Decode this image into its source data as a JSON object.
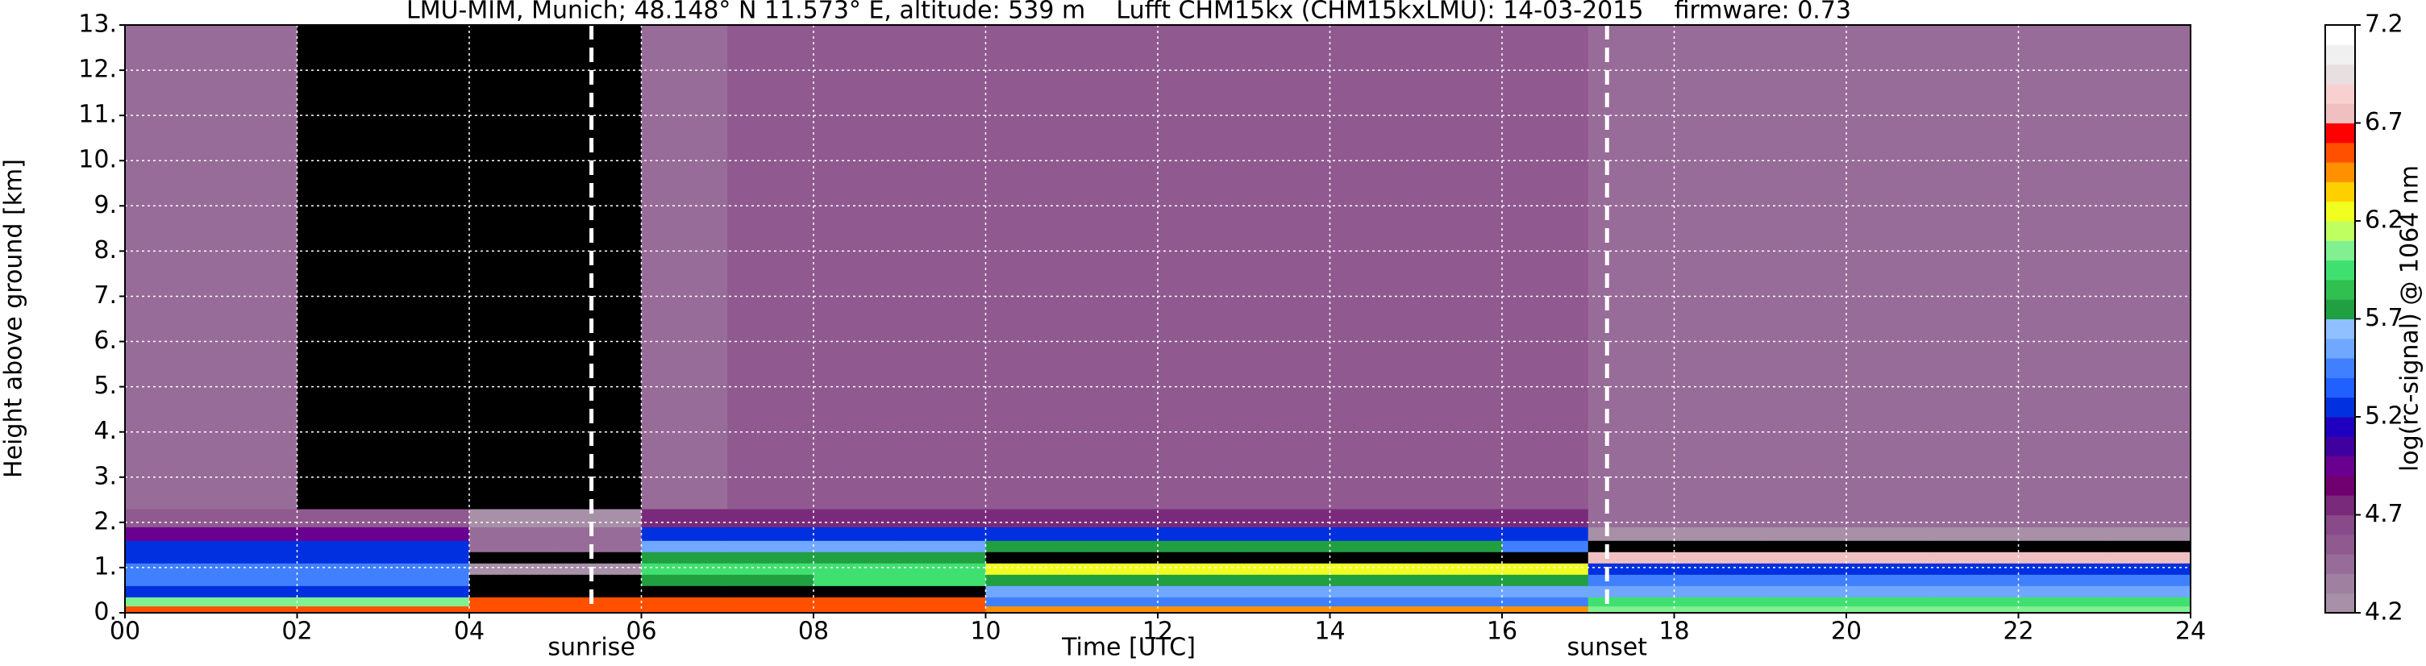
{
  "chart_data": {
    "type": "heatmap",
    "title": "LMU-MIM, Munich; 48.148° N 11.573° E, altitude: 539 m    Lufft CHM15kx (CHM15kxLMU): 14-03-2015    firmware: 0.73",
    "xlabel": "Time [UTC]",
    "ylabel": "Height above ground [km]",
    "colorbar_label": "log(rc-signal) @ 1064 nm",
    "x_edges": [
      0,
      1,
      2,
      3,
      4,
      5,
      6,
      7,
      8,
      9,
      10,
      11,
      12,
      13,
      14,
      15,
      16,
      17,
      18,
      19,
      20,
      21,
      22,
      23,
      24
    ],
    "y_edges": [
      0,
      0.15,
      0.35,
      0.6,
      0.85,
      1.1,
      1.35,
      1.6,
      1.9,
      2.3,
      13
    ],
    "z": [
      [
        6.5,
        6.5,
        6.5,
        6.5,
        6.5,
        6.5,
        6.5,
        6.5,
        6.5,
        6.5,
        6.4,
        6.4,
        6.4,
        6.4,
        6.4,
        6.4,
        6.4,
        6.0,
        6.0,
        6.0,
        6.0,
        6.0,
        6.0,
        6.0
      ],
      [
        6.1,
        6.1,
        6.1,
        6.1,
        6.6,
        6.6,
        6.6,
        6.6,
        6.6,
        6.6,
        5.5,
        5.5,
        5.5,
        5.5,
        5.5,
        5.5,
        5.5,
        5.9,
        5.9,
        5.9,
        5.9,
        5.9,
        5.9,
        5.9
      ],
      [
        5.3,
        5.3,
        5.3,
        5.3,
        4.1,
        4.1,
        4.1,
        4.1,
        4.1,
        4.1,
        5.6,
        5.6,
        5.6,
        5.6,
        5.6,
        5.6,
        5.6,
        5.6,
        5.6,
        5.6,
        5.6,
        5.6,
        5.6,
        5.6
      ],
      [
        5.4,
        5.4,
        5.4,
        5.4,
        4.1,
        4.1,
        5.8,
        5.8,
        5.9,
        5.9,
        5.7,
        5.7,
        5.7,
        5.7,
        5.7,
        5.7,
        5.7,
        5.4,
        5.4,
        5.4,
        5.4,
        5.4,
        5.4,
        5.4
      ],
      [
        5.5,
        5.5,
        5.5,
        5.5,
        4.3,
        4.3,
        5.9,
        5.9,
        5.9,
        5.9,
        6.3,
        6.3,
        6.3,
        6.3,
        6.3,
        6.3,
        6.3,
        5.3,
        5.3,
        5.3,
        5.3,
        5.3,
        5.3,
        5.3
      ],
      [
        5.3,
        5.3,
        5.3,
        5.3,
        4.1,
        4.1,
        5.8,
        5.8,
        5.8,
        5.8,
        4.1,
        4.1,
        4.1,
        4.1,
        4.1,
        4.1,
        4.1,
        6.8,
        6.8,
        6.8,
        6.8,
        6.8,
        6.8,
        6.8
      ],
      [
        5.2,
        5.2,
        5.2,
        5.2,
        4.5,
        4.5,
        5.6,
        5.6,
        5.6,
        5.6,
        5.8,
        5.8,
        5.8,
        5.8,
        5.8,
        5.8,
        5.4,
        4.1,
        4.1,
        4.1,
        4.1,
        4.1,
        4.1,
        4.1
      ],
      [
        4.9,
        4.9,
        4.9,
        4.9,
        4.4,
        4.4,
        5.3,
        5.3,
        5.3,
        5.3,
        5.3,
        5.3,
        5.3,
        5.3,
        5.3,
        5.3,
        5.3,
        4.3,
        4.3,
        4.3,
        4.3,
        4.3,
        4.3,
        4.3
      ],
      [
        4.6,
        4.6,
        4.6,
        4.6,
        4.2,
        4.2,
        4.7,
        4.7,
        4.7,
        4.7,
        4.8,
        4.8,
        4.8,
        4.8,
        4.8,
        4.8,
        4.8,
        4.4,
        4.4,
        4.4,
        4.4,
        4.4,
        4.4,
        4.4
      ],
      [
        4.5,
        4.5,
        4.1,
        4.1,
        4.1,
        4.1,
        4.4,
        4.6,
        4.6,
        4.6,
        4.6,
        4.6,
        4.6,
        4.6,
        4.6,
        4.6,
        4.6,
        4.5,
        4.5,
        4.5,
        4.5,
        4.5,
        4.5,
        4.5
      ]
    ],
    "clim": [
      4.2,
      7.2
    ],
    "cticks": [
      4.2,
      4.7,
      5.2,
      5.7,
      6.2,
      6.7,
      7.2
    ],
    "colormap": [
      "#a890a8",
      "#a080a0",
      "#986c98",
      "#905a90",
      "#884a88",
      "#7a2a7a",
      "#700070",
      "#6a0090",
      "#4000a0",
      "#2000c0",
      "#0030e0",
      "#2060ff",
      "#4080ff",
      "#70a8ff",
      "#90c0ff",
      "#20a040",
      "#30c050",
      "#40e070",
      "#80f090",
      "#c0ff60",
      "#f0ff20",
      "#ffd000",
      "#ff9000",
      "#ff5000",
      "#ff0000",
      "#f0c0c0",
      "#f8d0d0",
      "#e8e0e0",
      "#f0f0f0",
      "#ffffff"
    ],
    "under_color": "#000000",
    "xlim": [
      0,
      24
    ],
    "ylim": [
      0,
      13
    ],
    "xticks": [
      {
        "value": 0,
        "label": "00"
      },
      {
        "value": 2,
        "label": "02"
      },
      {
        "value": 4,
        "label": "04"
      },
      {
        "value": 6,
        "label": "06"
      },
      {
        "value": 8,
        "label": "08"
      },
      {
        "value": 10,
        "label": "10"
      },
      {
        "value": 12,
        "label": "12"
      },
      {
        "value": 14,
        "label": "14"
      },
      {
        "value": 16,
        "label": "16"
      },
      {
        "value": 18,
        "label": "18"
      },
      {
        "value": 20,
        "label": "20"
      },
      {
        "value": 22,
        "label": "22"
      },
      {
        "value": 24,
        "label": "24"
      }
    ],
    "yticks": [
      {
        "value": 0,
        "label": "0."
      },
      {
        "value": 1,
        "label": "1."
      },
      {
        "value": 2,
        "label": "2."
      },
      {
        "value": 3,
        "label": "3."
      },
      {
        "value": 4,
        "label": "4."
      },
      {
        "value": 5,
        "label": "5."
      },
      {
        "value": 6,
        "label": "6."
      },
      {
        "value": 7,
        "label": "7."
      },
      {
        "value": 8,
        "label": "8."
      },
      {
        "value": 9,
        "label": "9."
      },
      {
        "value": 10,
        "label": "10."
      },
      {
        "value": 11,
        "label": "11."
      },
      {
        "value": 12,
        "label": "12."
      },
      {
        "value": 13,
        "label": "13."
      }
    ],
    "grid": true,
    "grid_color": "#ffffff",
    "annotations": [
      {
        "x": 5.42,
        "label": "sunrise"
      },
      {
        "x": 17.22,
        "label": "sunset"
      }
    ],
    "annotation_color": "#ffffff"
  }
}
